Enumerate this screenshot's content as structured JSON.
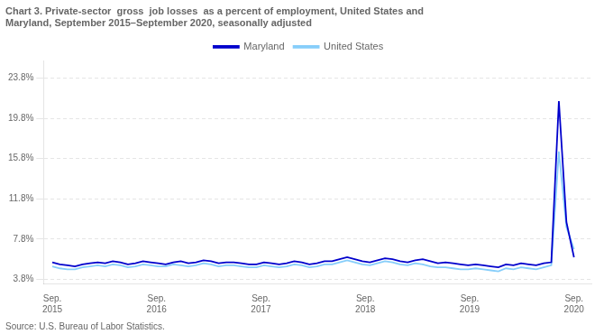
{
  "chart_data": {
    "type": "line",
    "title": "Chart 3. Private-sector  gross  job losses  as a percent of employment, United States and\nMaryland, September 2015–September 2020, seasonally adjusted",
    "source": "Source: U.S. Bureau of Labor Statistics.",
    "x": [
      0,
      0.8696,
      1.7391,
      2.6087,
      3.4783,
      4.3478,
      5.2174,
      6.087,
      6.9565,
      7.8261,
      8.6957,
      9.5652,
      10.4348,
      11.3043,
      12.1739,
      13.0435,
      13.913,
      14.7826,
      15.6522,
      16.5217,
      17.3913,
      18.2609,
      19.1304,
      20,
      20.8696,
      21.7391,
      22.6087,
      23.4783,
      24.3478,
      25.2174,
      26.087,
      26.9565,
      27.8261,
      28.6957,
      29.5652,
      30.4348,
      31.3043,
      32.1739,
      33.0435,
      33.913,
      34.7826,
      35.6522,
      36.5217,
      37.3913,
      38.2609,
      39.1304,
      40,
      40.8696,
      41.7391,
      42.6087,
      43.4783,
      44.3478,
      45.2174,
      46.087,
      46.9565,
      47.8261,
      48.6957,
      49.5652,
      50.4348,
      51.3043,
      52.1739,
      53.0435,
      53.913,
      54.7826,
      55.6522,
      56.5217,
      57.3913,
      58.2609,
      59.1304,
      60
    ],
    "series": [
      {
        "name": "Maryland",
        "color": "#0000CC",
        "values": [
          5.5,
          5.3,
          5.2,
          5.1,
          5.3,
          5.4,
          5.5,
          5.4,
          5.6,
          5.5,
          5.3,
          5.4,
          5.6,
          5.5,
          5.4,
          5.3,
          5.5,
          5.6,
          5.4,
          5.5,
          5.7,
          5.6,
          5.4,
          5.5,
          5.5,
          5.4,
          5.3,
          5.3,
          5.5,
          5.4,
          5.3,
          5.4,
          5.6,
          5.5,
          5.3,
          5.4,
          5.6,
          5.6,
          5.8,
          6.0,
          5.8,
          5.6,
          5.5,
          5.7,
          5.9,
          5.8,
          5.6,
          5.5,
          5.7,
          5.8,
          5.6,
          5.4,
          5.5,
          5.4,
          5.3,
          5.2,
          5.3,
          5.2,
          5.1,
          5.0,
          5.3,
          5.2,
          5.4,
          5.3,
          5.2,
          5.4,
          5.5,
          21.5,
          9.5,
          6.0
        ]
      },
      {
        "name": "United States",
        "color": "#87CEFA",
        "values": [
          5.1,
          4.9,
          4.8,
          4.8,
          5.0,
          5.1,
          5.2,
          5.1,
          5.3,
          5.2,
          5.0,
          5.1,
          5.3,
          5.2,
          5.1,
          5.1,
          5.3,
          5.2,
          5.1,
          5.2,
          5.4,
          5.3,
          5.1,
          5.2,
          5.2,
          5.1,
          5.0,
          5.0,
          5.2,
          5.1,
          5.0,
          5.1,
          5.3,
          5.2,
          5.0,
          5.1,
          5.3,
          5.3,
          5.5,
          5.7,
          5.5,
          5.3,
          5.2,
          5.4,
          5.6,
          5.5,
          5.3,
          5.2,
          5.4,
          5.3,
          5.1,
          5.0,
          5.0,
          4.9,
          4.8,
          4.8,
          4.9,
          4.8,
          4.7,
          4.6,
          4.9,
          4.8,
          5.0,
          4.9,
          4.8,
          5.0,
          5.2,
          16.5,
          9.0,
          6.8
        ]
      }
    ],
    "xlim": [
      -1,
      62
    ],
    "xticks": [
      {
        "value": 0,
        "label": "Sep.\n2015"
      },
      {
        "value": 12,
        "label": "Sep.\n2016"
      },
      {
        "value": 24,
        "label": "Sep.\n2017"
      },
      {
        "value": 36,
        "label": "Sep.\n2018"
      },
      {
        "value": 48,
        "label": "Sep.\n2019"
      },
      {
        "value": 60,
        "label": "Sep.\n2020"
      }
    ],
    "ylim": [
      3.4,
      25.5
    ],
    "yticks": [
      {
        "value": 3.8,
        "label": "3.8%"
      },
      {
        "value": 7.8,
        "label": "7.8%"
      },
      {
        "value": 11.8,
        "label": "11.8%"
      },
      {
        "value": 15.8,
        "label": "15.8%"
      },
      {
        "value": 19.8,
        "label": "19.8%"
      },
      {
        "value": 23.8,
        "label": "23.8%"
      }
    ],
    "grid": "y",
    "legend": "top"
  }
}
